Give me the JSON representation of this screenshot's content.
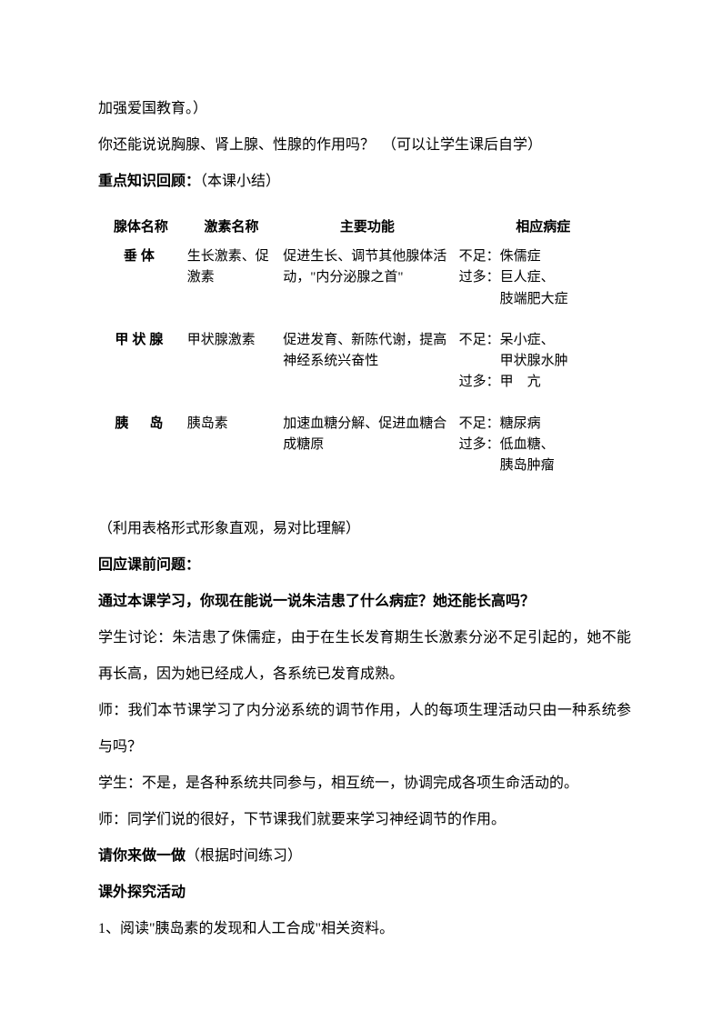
{
  "para1": "加强爱国教育。）",
  "para2": "你还能说说胸腺、肾上腺、性腺的作用吗？　（可以让学生课后自学）",
  "para3_bold": "重点知识回顾：",
  "para3_rest": "（本课小结）",
  "table": {
    "headers": [
      "腺体名称",
      "激素名称",
      "主要功能",
      "相应病症"
    ],
    "rows": [
      {
        "gland": "垂体",
        "gland_spaced": false,
        "hormone": "生长激素、促激素",
        "function": "促进生长、调节其他腺体活动，\"内分泌腺之首\"",
        "disease": "不足：侏儒症\n过多：巨人症、\n　　　肢端肥大症"
      },
      {
        "gland": "甲状腺",
        "gland_spaced": false,
        "hormone": "甲状腺激素",
        "function": "促进发育、新陈代谢，提高神经系统兴奋性",
        "disease": "不足：呆小症、\n　　　甲状腺水肿\n过多：甲　亢"
      },
      {
        "gland": "胰　岛",
        "gland_spaced": false,
        "hormone": "胰岛素",
        "function": "加速血糖分解、促进血糖合成糖原",
        "disease": "不足：糖尿病\n过多：低血糖、\n　　　胰岛肿瘤"
      }
    ]
  },
  "para4": "（利用表格形式形象直观，易对比理解）",
  "para5_bold": "回应课前问题：",
  "para6_bold": "通过本课学习，你现在能说一说朱洁患了什么病症？她还能长高吗？",
  "para7": "学生讨论：朱洁患了侏儒症，由于在生长发育期生长激素分泌不足引起的，她不能再长高，因为她已经成人，各系统已发育成熟。",
  "para8": "师：我们本节课学习了内分泌系统的调节作用，人的每项生理活动只由一种系统参与吗？",
  "para9": "学生：不是，是各种系统共同参与，相互统一，协调完成各项生命活动的。",
  "para10": "师：同学们说的很好，下节课我们就要来学习神经调节的作用。",
  "para11_bold": "请你来做一做",
  "para11_rest": "（根据时间练习）",
  "para12_bold": "课外探究活动",
  "para13": "1、阅读\"胰岛素的发现和人工合成\"相关资料。"
}
